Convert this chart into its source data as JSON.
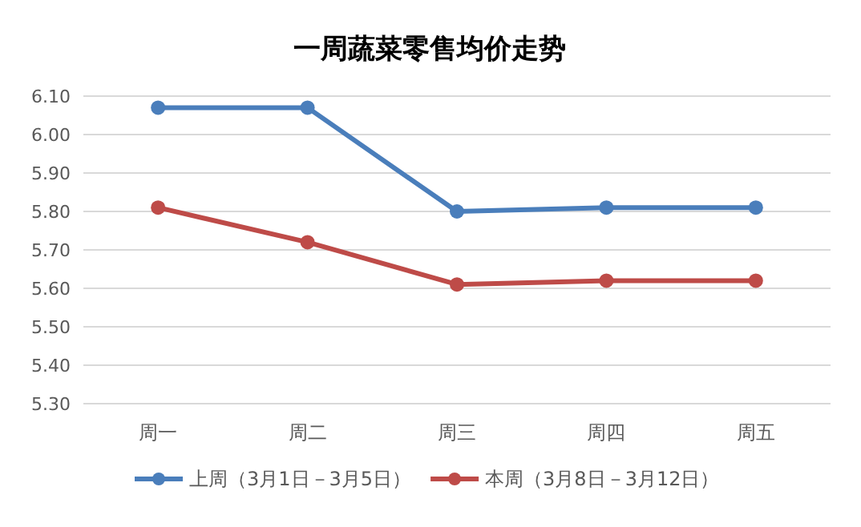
{
  "chart_data": {
    "type": "line",
    "title": "一周蔬菜零售均价走势",
    "categories": [
      "周一",
      "周二",
      "周三",
      "周四",
      "周五"
    ],
    "series": [
      {
        "name": "上周（3月1日－3月5日）",
        "color": "#4a7ebb",
        "values": [
          6.07,
          6.07,
          5.8,
          5.81,
          5.81
        ]
      },
      {
        "name": "本周（3月8日－3月12日）",
        "color": "#be4b48",
        "values": [
          5.81,
          5.72,
          5.61,
          5.62,
          5.62
        ]
      }
    ],
    "ylim": [
      5.3,
      6.1
    ],
    "yticks": [
      {
        "value": 5.3,
        "label": "5.30"
      },
      {
        "value": 5.4,
        "label": "5.40"
      },
      {
        "value": 5.5,
        "label": "5.50"
      },
      {
        "value": 5.6,
        "label": "5.60"
      },
      {
        "value": 5.7,
        "label": "5.70"
      },
      {
        "value": 5.8,
        "label": "5.80"
      },
      {
        "value": 5.9,
        "label": "5.90"
      },
      {
        "value": 6.0,
        "label": "6.00"
      },
      {
        "value": 6.1,
        "label": "6.10"
      }
    ],
    "grid": "y",
    "legend": "bottom",
    "marker": "circle",
    "line_style": "solid"
  }
}
